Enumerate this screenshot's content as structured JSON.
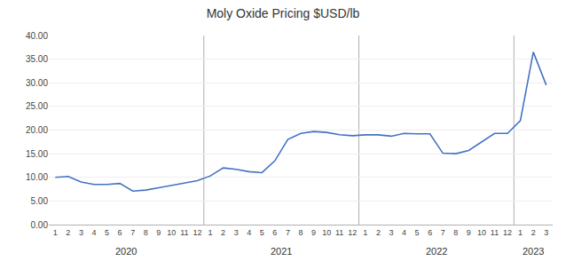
{
  "chart_data": {
    "type": "line",
    "title": "Moly Oxide Pricing $USD/lb",
    "color": "#4472C4",
    "categories": [
      "1",
      "2",
      "3",
      "4",
      "5",
      "6",
      "7",
      "8",
      "9",
      "10",
      "11",
      "12",
      "1",
      "2",
      "3",
      "4",
      "5",
      "6",
      "7",
      "8",
      "9",
      "10",
      "11",
      "12",
      "1",
      "2",
      "3",
      "4",
      "5",
      "6",
      "7",
      "8",
      "9",
      "10",
      "11",
      "12",
      "1",
      "2",
      "3"
    ],
    "values": [
      10.0,
      10.2,
      9.0,
      8.5,
      8.5,
      8.7,
      7.1,
      7.3,
      7.8,
      8.3,
      8.8,
      9.3,
      10.3,
      12.0,
      11.7,
      11.2,
      11.0,
      13.5,
      18.0,
      19.3,
      19.7,
      19.5,
      19.0,
      18.8,
      19.0,
      19.0,
      18.7,
      19.3,
      19.2,
      19.2,
      15.1,
      15.0,
      15.7,
      17.5,
      19.3,
      19.3,
      22.0,
      36.5,
      29.5
    ],
    "annotations": [
      "2020",
      "2021",
      "2022",
      "2023"
    ],
    "ylim": [
      0,
      40
    ],
    "yticks": [
      {
        "value": 0,
        "label": "0.00"
      },
      {
        "value": 5,
        "label": "5.00"
      },
      {
        "value": 10,
        "label": "10.00"
      },
      {
        "value": 15,
        "label": "15.00"
      },
      {
        "value": 20,
        "label": "20.00"
      },
      {
        "value": 25,
        "label": "25.00"
      },
      {
        "value": 30,
        "label": "30.00"
      },
      {
        "value": 35,
        "label": "35.00"
      },
      {
        "value": 40,
        "label": "40.00"
      }
    ],
    "grid": true
  }
}
